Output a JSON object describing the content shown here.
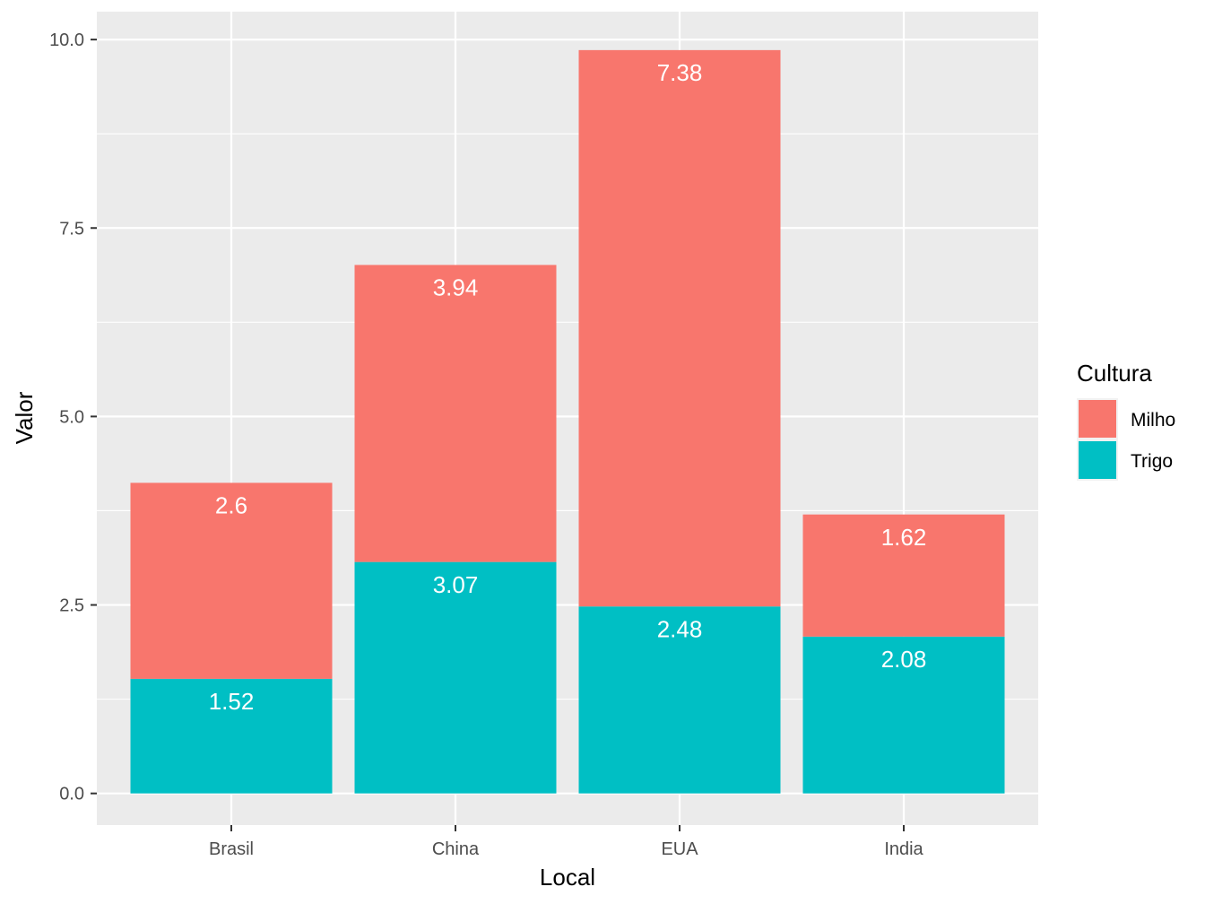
{
  "chart_data": {
    "type": "bar",
    "stacked": true,
    "categories": [
      "Brasil",
      "China",
      "EUA",
      "India"
    ],
    "series": [
      {
        "name": "Trigo",
        "values": [
          1.52,
          3.07,
          2.48,
          2.08
        ],
        "labels": [
          "1.52",
          "3.07",
          "2.48",
          "2.08"
        ],
        "color": "#00BFC4"
      },
      {
        "name": "Milho",
        "values": [
          2.6,
          3.94,
          7.38,
          1.62
        ],
        "labels": [
          "2.6",
          "3.94",
          "7.38",
          "1.62"
        ],
        "color": "#F8766D"
      }
    ],
    "xlabel": "Local",
    "ylabel": "Valor",
    "ylim": [
      -0.42,
      10.37
    ],
    "yticks": [
      0.0,
      2.5,
      5.0,
      7.5,
      10.0
    ],
    "ytick_labels": [
      "0.0",
      "2.5",
      "5.0",
      "7.5",
      "10.0"
    ],
    "grid": true,
    "legend": {
      "title": "Cultura",
      "position": "right",
      "items": [
        "Milho",
        "Trigo"
      ]
    },
    "colors": {
      "panel": "#EBEBEB",
      "grid": "#FFFFFF",
      "label": "#FFFFFF"
    }
  }
}
